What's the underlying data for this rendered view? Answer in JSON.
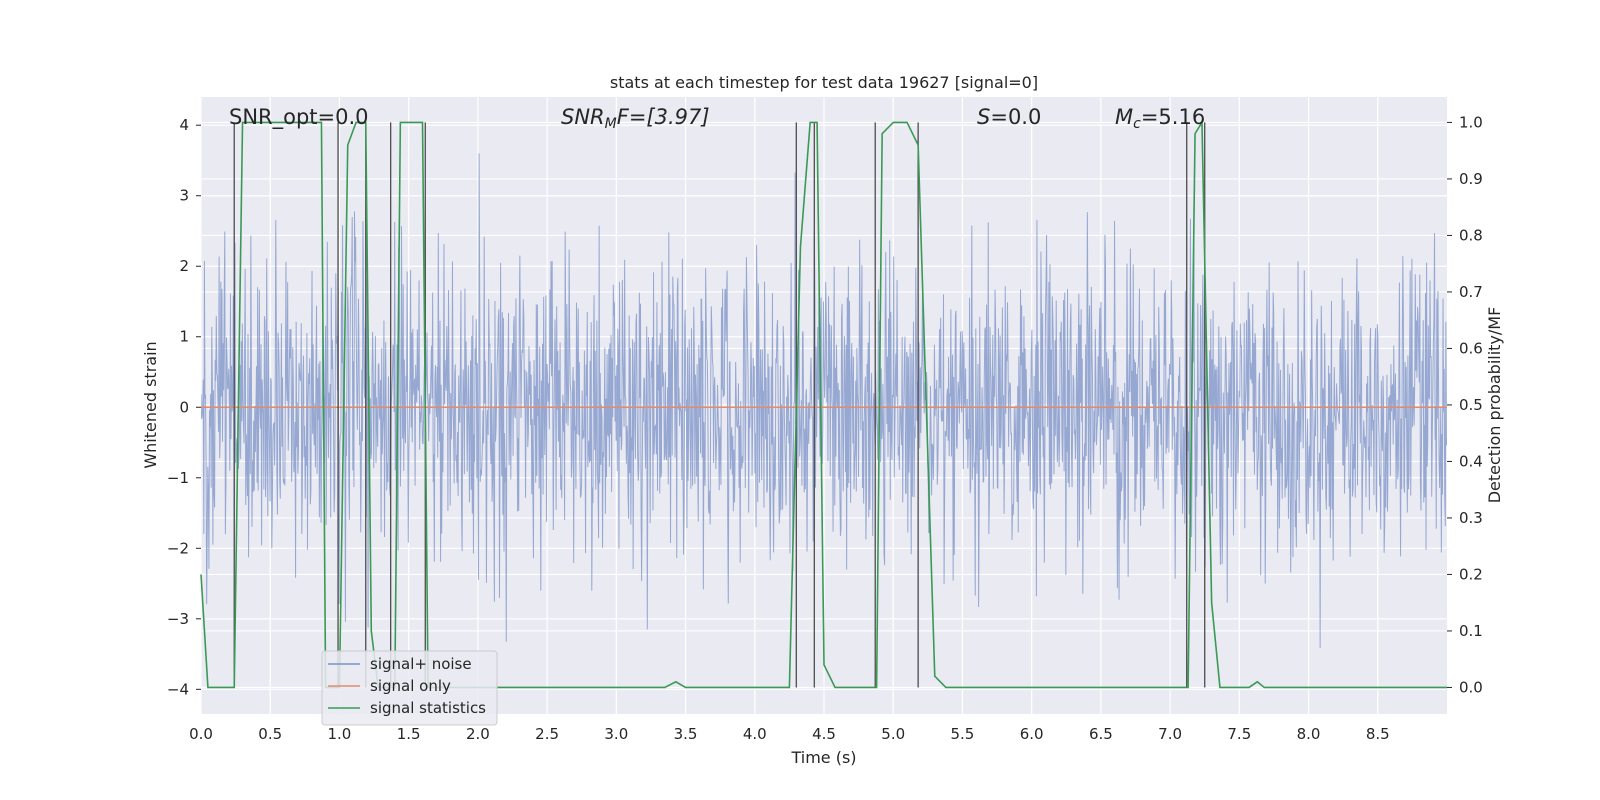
{
  "chart_data": {
    "type": "line",
    "title": "stats at each timestep for test data 19627 [signal=0]",
    "xlabel": "Time (s)",
    "ylabel": "Whitened strain",
    "ylabel_right": "Detection probability/MF",
    "xlim": [
      0.0,
      9.0
    ],
    "ylim": [
      -4.35,
      4.4
    ],
    "ylim_right": [
      -0.047,
      1.045
    ],
    "xticks": [
      "0.0",
      "0.5",
      "1.0",
      "1.5",
      "2.0",
      "2.5",
      "3.0",
      "3.5",
      "4.0",
      "4.5",
      "5.0",
      "5.5",
      "6.0",
      "6.5",
      "7.0",
      "7.5",
      "8.0",
      "8.5"
    ],
    "yticks": [
      "4",
      "3",
      "2",
      "1",
      "0",
      "−1",
      "−2",
      "−3",
      "−4"
    ],
    "yticks_right": [
      "1.0",
      "0.9",
      "0.8",
      "0.7",
      "0.6",
      "0.5",
      "0.4",
      "0.3",
      "0.2",
      "0.1",
      "0.0"
    ],
    "grid": true,
    "legend_position": "lower-left",
    "annotations": {
      "snr_opt": "SNR_opt=0.0",
      "snr_mf_base": "SNR",
      "snr_mf_sub": "M",
      "snr_mf_rest": "F=[3.97]",
      "s_italic": "S",
      "s_rest": "=0.0",
      "mc_base": "M",
      "mc_sub": "c",
      "mc_rest": "=5.16"
    },
    "series": [
      {
        "name": "signal+ noise",
        "color": "#7a91c7",
        "envelope": "noise, approximately within [-3.8, 3.6]"
      },
      {
        "name": "signal only",
        "color": "#e38b6b",
        "values_constant": 0.0
      },
      {
        "name": "signal statistics",
        "color": "#3a9a55",
        "axis": "right",
        "points": [
          [
            0.0,
            0.2
          ],
          [
            0.05,
            0.0
          ],
          [
            0.24,
            0.0
          ],
          [
            0.3,
            1.0
          ],
          [
            0.87,
            1.0
          ],
          [
            0.9,
            0.0
          ],
          [
            1.0,
            0.0
          ],
          [
            1.06,
            0.96
          ],
          [
            1.12,
            1.0
          ],
          [
            1.19,
            1.0
          ],
          [
            1.23,
            0.1
          ],
          [
            1.28,
            0.0
          ],
          [
            1.4,
            0.0
          ],
          [
            1.44,
            1.0
          ],
          [
            1.6,
            1.0
          ],
          [
            1.64,
            0.0
          ],
          [
            3.35,
            0.0
          ],
          [
            3.43,
            0.01
          ],
          [
            3.5,
            0.0
          ],
          [
            4.25,
            0.0
          ],
          [
            4.33,
            0.78
          ],
          [
            4.4,
            1.0
          ],
          [
            4.45,
            1.0
          ],
          [
            4.5,
            0.04
          ],
          [
            4.58,
            0.0
          ],
          [
            4.88,
            0.0
          ],
          [
            4.92,
            0.98
          ],
          [
            5.0,
            1.0
          ],
          [
            5.1,
            1.0
          ],
          [
            5.18,
            0.96
          ],
          [
            5.3,
            0.02
          ],
          [
            5.38,
            0.0
          ],
          [
            7.13,
            0.0
          ],
          [
            7.18,
            0.98
          ],
          [
            7.23,
            1.0
          ],
          [
            7.3,
            0.15
          ],
          [
            7.36,
            0.0
          ],
          [
            7.57,
            0.0
          ],
          [
            7.63,
            0.01
          ],
          [
            7.68,
            0.0
          ],
          [
            9.0,
            0.0
          ]
        ]
      }
    ],
    "vertical_markers_x": [
      0.24,
      0.99,
      1.19,
      1.37,
      1.62,
      4.3,
      4.43,
      4.87,
      5.18,
      7.12,
      7.25
    ]
  }
}
